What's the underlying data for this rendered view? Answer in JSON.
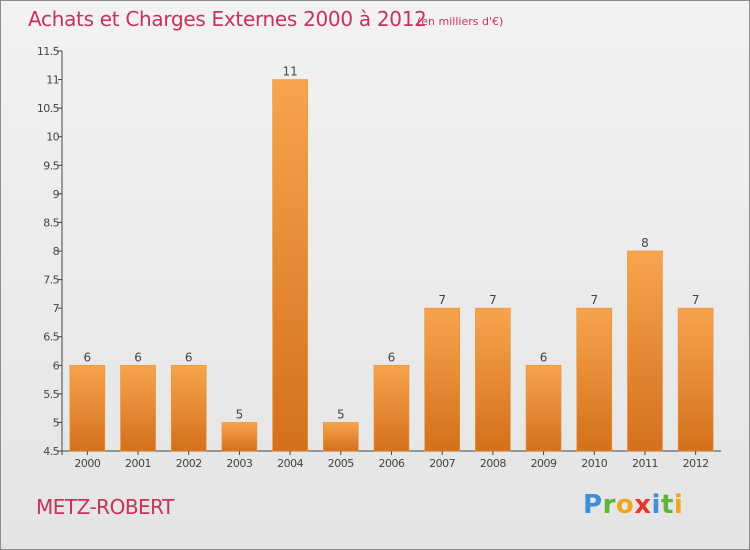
{
  "header": {
    "title": "Achats et Charges Externes 2000 à 2012",
    "unit": "(en milliers d'€)"
  },
  "footer": {
    "place": "METZ-ROBERT",
    "logo": [
      "P",
      "r",
      "o",
      "x",
      "i",
      "t",
      "i"
    ]
  },
  "colors": {
    "bar_top": "#f8a44e",
    "bar_bottom": "#d4701c",
    "title": "#c8325a"
  },
  "chart_data": {
    "type": "bar",
    "categories": [
      "2000",
      "2001",
      "2002",
      "2003",
      "2004",
      "2005",
      "2006",
      "2007",
      "2008",
      "2009",
      "2010",
      "2011",
      "2012"
    ],
    "values": [
      6,
      6,
      6,
      5,
      11,
      5,
      6,
      7,
      7,
      6,
      7,
      8,
      7
    ],
    "data_labels": [
      "6",
      "6",
      "6",
      "5",
      "11",
      "5",
      "6",
      "7",
      "7",
      "6",
      "7",
      "8",
      "7"
    ],
    "y_ticks": [
      "4.5",
      "5",
      "5.5",
      "6",
      "6.5",
      "7",
      "7.5",
      "8",
      "8.5",
      "9",
      "9.5",
      "10",
      "10.5",
      "11",
      "11.5"
    ],
    "ylim": [
      4.5,
      11.5
    ],
    "grid": false,
    "legend": "none"
  }
}
